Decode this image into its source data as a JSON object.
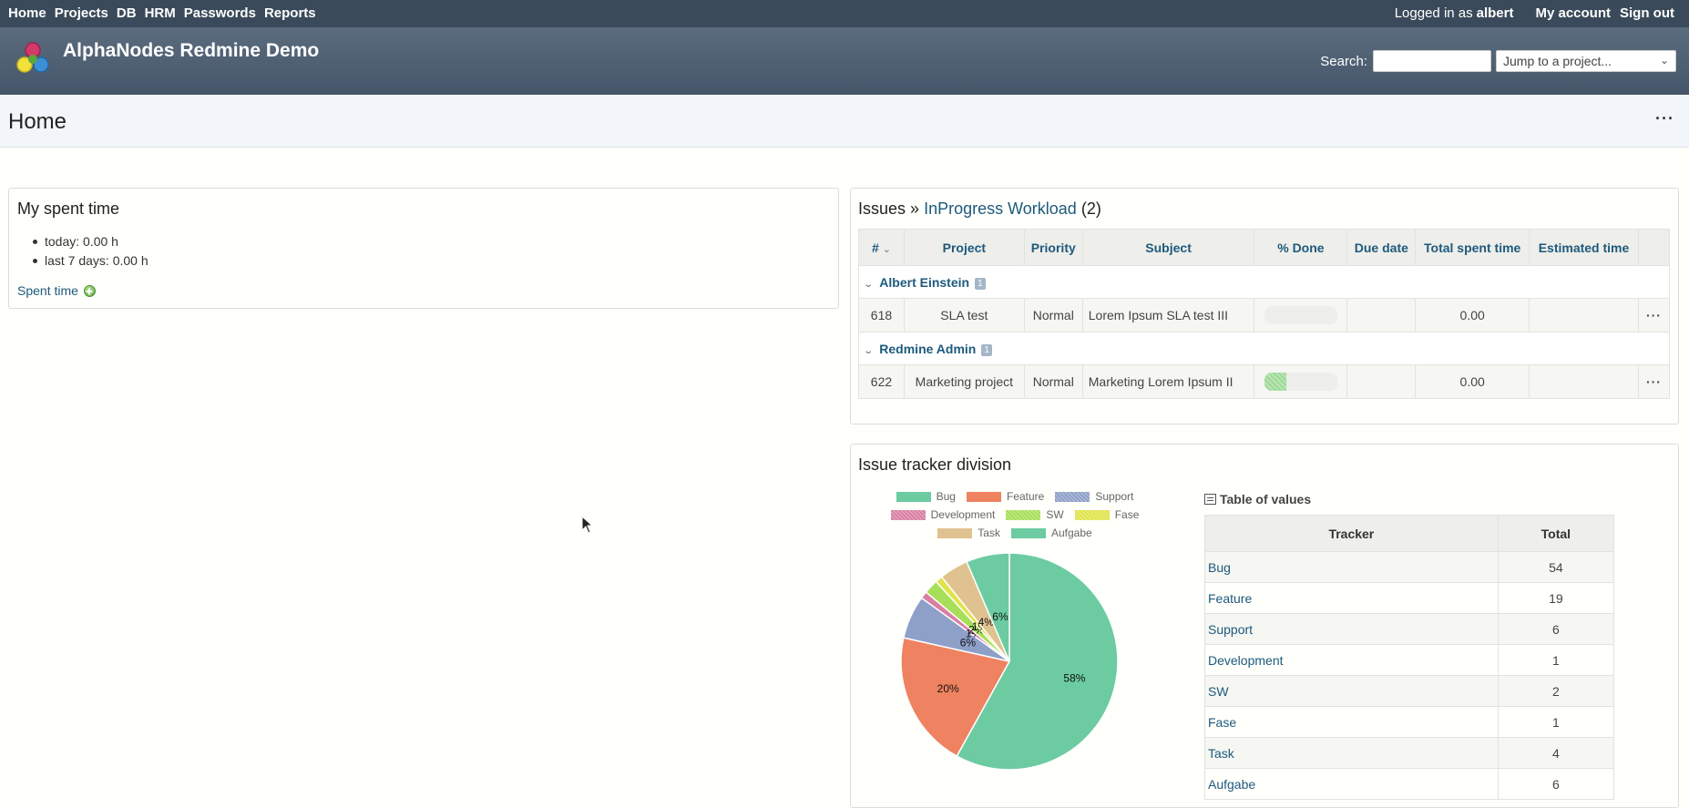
{
  "top_menu": {
    "items": [
      "Home",
      "Projects",
      "DB",
      "HRM",
      "Passwords",
      "Reports"
    ],
    "logged_in_label": "Logged in as",
    "user": "albert",
    "my_account": "My account",
    "sign_out": "Sign out"
  },
  "header": {
    "title": "AlphaNodes Redmine Demo",
    "search_label": "Search:",
    "search_value": "",
    "jump_placeholder": "Jump to a project...",
    "logo_icon": "alphanodes-logo-icon"
  },
  "page": {
    "title": "Home",
    "more": "···"
  },
  "spent_time": {
    "title": "My spent time",
    "items": [
      "today: 0.00 h",
      "last 7 days: 0.00 h"
    ],
    "link": "Spent time"
  },
  "issues": {
    "prefix": "Issues »",
    "query": "InProgress Workload",
    "count": "(2)",
    "columns": [
      "#",
      "Project",
      "Priority",
      "Subject",
      "% Done",
      "Due date",
      "Total spent time",
      "Estimated time"
    ],
    "groups": [
      {
        "name": "Albert Einstein",
        "count": "1",
        "rows": [
          {
            "id": "618",
            "project": "SLA test",
            "priority": "Normal",
            "subject": "Lorem Ipsum SLA test III",
            "done": 0,
            "due": "",
            "spent": "0.00",
            "estimated": "",
            "menu": "···"
          }
        ]
      },
      {
        "name": "Redmine Admin",
        "count": "1",
        "rows": [
          {
            "id": "622",
            "project": "Marketing project",
            "priority": "Normal",
            "subject": "Marketing Lorem Ipsum II",
            "done": 30,
            "due": "",
            "spent": "0.00",
            "estimated": "",
            "menu": "···"
          }
        ]
      }
    ]
  },
  "tracker_division": {
    "title": "Issue tracker division",
    "table_title": "Table of values",
    "table_headers": [
      "Tracker",
      "Total"
    ],
    "colors": {
      "Bug": "#6ccba1",
      "Feature": "#ef8260",
      "Support": "#8e9fc8",
      "Development": "#d97fa3",
      "SW": "#a8df58",
      "Fase": "#e0e34a",
      "Task": "#dfc28f",
      "Aufgabe": "#6ccba1"
    }
  },
  "chart_data": {
    "type": "pie",
    "title": "Issue tracker division",
    "categories": [
      "Bug",
      "Feature",
      "Support",
      "Development",
      "SW",
      "Fase",
      "Task",
      "Aufgabe"
    ],
    "values": [
      54,
      19,
      6,
      1,
      2,
      1,
      4,
      6
    ],
    "slice_labels": [
      "58%",
      "20%",
      "6%",
      "1%",
      "2%",
      "1%",
      "4%",
      "6%"
    ],
    "legend_position": "top"
  }
}
